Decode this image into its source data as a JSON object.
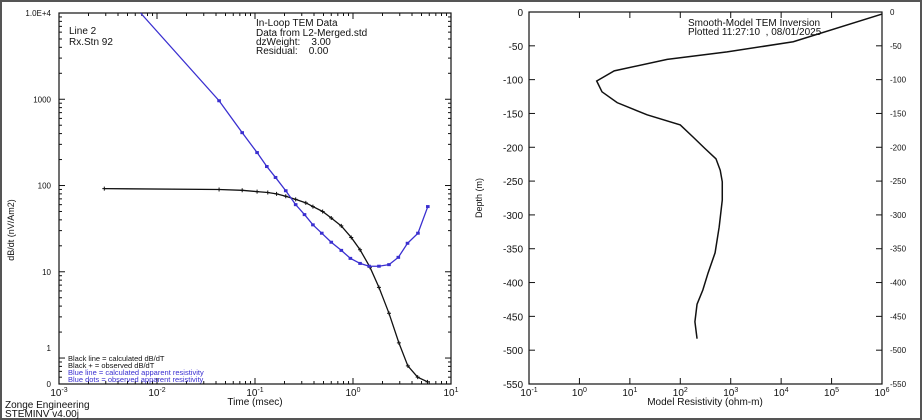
{
  "chart_data": [
    {
      "type": "line",
      "xlabel": "Time (msec)",
      "ylabel": "dB/dt (nV/Am2)",
      "x_scale": "log",
      "y_scale": "log",
      "xlim": [
        0.001,
        10
      ],
      "ylim": [
        0.5,
        10000
      ],
      "x_tick_labels": [
        {
          "base": "10",
          "exp": "-3"
        },
        {
          "base": "10",
          "exp": "-2"
        },
        {
          "base": "10",
          "exp": "-1"
        },
        {
          "base": "10",
          "exp": "0"
        },
        {
          "base": "10",
          "exp": "1"
        }
      ],
      "x_tick_values": [
        0.001,
        0.01,
        0.1,
        1,
        10
      ],
      "y_tick_labels": [
        "1.0E+4",
        "1000",
        "100",
        "10",
        "1",
        "0"
      ],
      "y_tick_values": [
        10000,
        1000,
        100,
        10,
        1.3,
        0.5
      ],
      "info_left": [
        "Line 2",
        "Rx.Stn 92"
      ],
      "info_right": [
        "In-Loop TEM Data",
        "Data from L2-Merged.std",
        "dzWeight:    3.00",
        "Residual:    0.00"
      ],
      "legend": [
        {
          "text": "Black line = calculated dB/dT",
          "color": "#111111"
        },
        {
          "text": "Black + = observed dB/dT",
          "color": "#111111"
        },
        {
          "text": "Blue line = calculated apparent resistivity",
          "color": "#3a2fd0"
        },
        {
          "text": "Blue dots = observed apparent resistivity",
          "color": "#3a2fd0"
        }
      ],
      "legend_position": "bottom-left",
      "footer": [
        "Zonge Engineering",
        "STEMINV v4.00j"
      ],
      "series": [
        {
          "color": "#111111",
          "marker": "plus",
          "x": [
            0.0029,
            0.043,
            0.074,
            0.105,
            0.135,
            0.166,
            0.206,
            0.26,
            0.33,
            0.39,
            0.49,
            0.6,
            0.76,
            0.96,
            1.18,
            1.49,
            1.84,
            2.33,
            2.94,
            3.63,
            4.57,
            5.76
          ],
          "y": [
            92,
            90,
            88,
            85,
            83,
            80,
            75,
            69,
            63,
            57,
            50,
            42,
            34,
            25,
            18,
            11.3,
            6.6,
            3.3,
            1.5,
            0.81,
            0.6,
            0.53
          ]
        },
        {
          "color": "#3a2fd0",
          "marker": "dot",
          "line_start": [
            0.0068,
            10000
          ],
          "x": [
            0.043,
            0.074,
            0.105,
            0.132,
            0.162,
            0.206,
            0.26,
            0.32,
            0.39,
            0.48,
            0.6,
            0.76,
            0.94,
            1.18,
            1.46,
            1.84,
            2.33,
            2.9,
            3.6,
            4.6,
            5.8
          ],
          "y": [
            961,
            410,
            241,
            166,
            124,
            87,
            60,
            46,
            35,
            28,
            22,
            17.7,
            14.3,
            12.5,
            11.6,
            11.6,
            12.1,
            14.7,
            21.4,
            28,
            57
          ]
        }
      ]
    },
    {
      "type": "line",
      "title": "Smooth-Model TEM Inversion",
      "subtitle": "Plotted 11:27:10  , 08/01/2025",
      "xlabel": "Model Resistivity (ohm-m)",
      "ylabel": "Depth (m)",
      "x_scale": "log",
      "xlim": [
        0.1,
        1000000
      ],
      "ylim": [
        -550,
        0
      ],
      "x_tick_labels": [
        {
          "base": "10",
          "exp": "-1"
        },
        {
          "base": "10",
          "exp": "0"
        },
        {
          "base": "10",
          "exp": "1"
        },
        {
          "base": "10",
          "exp": "2"
        },
        {
          "base": "10",
          "exp": "3"
        },
        {
          "base": "10",
          "exp": "4"
        },
        {
          "base": "10",
          "exp": "5"
        },
        {
          "base": "10",
          "exp": "6"
        }
      ],
      "y_ticks": [
        0,
        -50,
        -100,
        -150,
        -200,
        -250,
        -300,
        -350,
        -400,
        -450,
        -500,
        -550
      ],
      "series": [
        {
          "color": "#111111",
          "x": [
            1000000,
            17400,
            850,
            55,
            4.9,
            2.2,
            2.8,
            5.6,
            22,
            100,
            180,
            310,
            510,
            620,
            680,
            680,
            590,
            490,
            355,
            280,
            215,
            195,
            215
          ],
          "y": [
            -3,
            -44,
            -59,
            -70,
            -87,
            -102,
            -118,
            -134,
            -152,
            -167,
            -185,
            -202,
            -217,
            -234,
            -251,
            -278,
            -318,
            -356,
            -386,
            -411,
            -432,
            -458,
            -483
          ]
        }
      ]
    }
  ]
}
